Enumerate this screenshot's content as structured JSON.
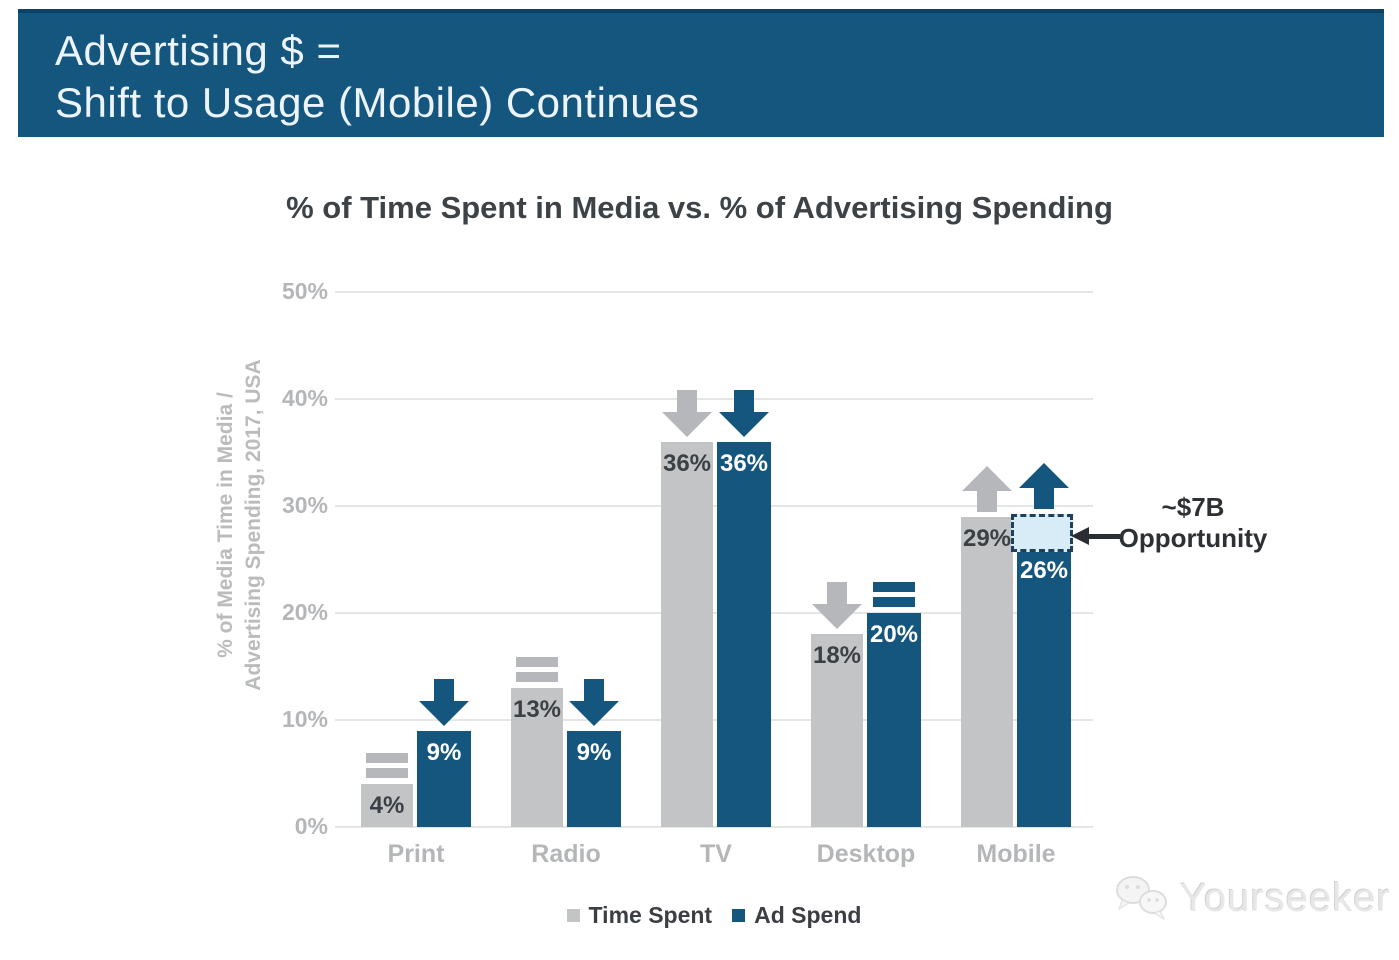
{
  "header": {
    "line1": "Advertising $ =",
    "line2": "Shift to Usage (Mobile) Continues"
  },
  "chart_data": {
    "type": "bar",
    "title": "% of Time Spent in Media vs. % of Advertising Spending",
    "ylabel_line1": "% of Media Time in Media /",
    "ylabel_line2": "Advertising Spending, 2017, USA",
    "categories": [
      "Print",
      "Radio",
      "TV",
      "Desktop",
      "Mobile"
    ],
    "series": [
      {
        "name": "Time Spent",
        "color": "#c3c4c6",
        "trend_color": "#b5b7ba",
        "label_color": "#3b4045",
        "values": [
          4,
          13,
          36,
          18,
          29
        ],
        "labels": [
          "4%",
          "13%",
          "36%",
          "18%",
          "29%"
        ],
        "trends": [
          "equal",
          "equal",
          "down",
          "down",
          "up"
        ]
      },
      {
        "name": "Ad Spend",
        "color": "#15567E",
        "trend_color": "#15567E",
        "label_color": "#ffffff",
        "values": [
          9,
          9,
          36,
          20,
          26
        ],
        "labels": [
          "9%",
          "9%",
          "36%",
          "20%",
          "26%"
        ],
        "trends": [
          "down",
          "down",
          "down",
          "equal",
          "up"
        ]
      }
    ],
    "ylim": [
      0,
      50
    ],
    "yticks": [
      "0%",
      "10%",
      "20%",
      "30%",
      "40%",
      "50%"
    ],
    "grid": true,
    "legend_position": "bottom",
    "annotation": {
      "line1": "~$7B",
      "line2": "Opportunity",
      "target": "gap between Mobile ad spend 26% and 29%"
    }
  },
  "annotation": {
    "line1": "~$7B",
    "line2": "Opportunity"
  },
  "legend": [
    {
      "label": "Time Spent",
      "color": "#c3c4c6"
    },
    {
      "label": "Ad Spend",
      "color": "#15567E"
    }
  ],
  "watermark": {
    "text": "Yourseeker"
  }
}
